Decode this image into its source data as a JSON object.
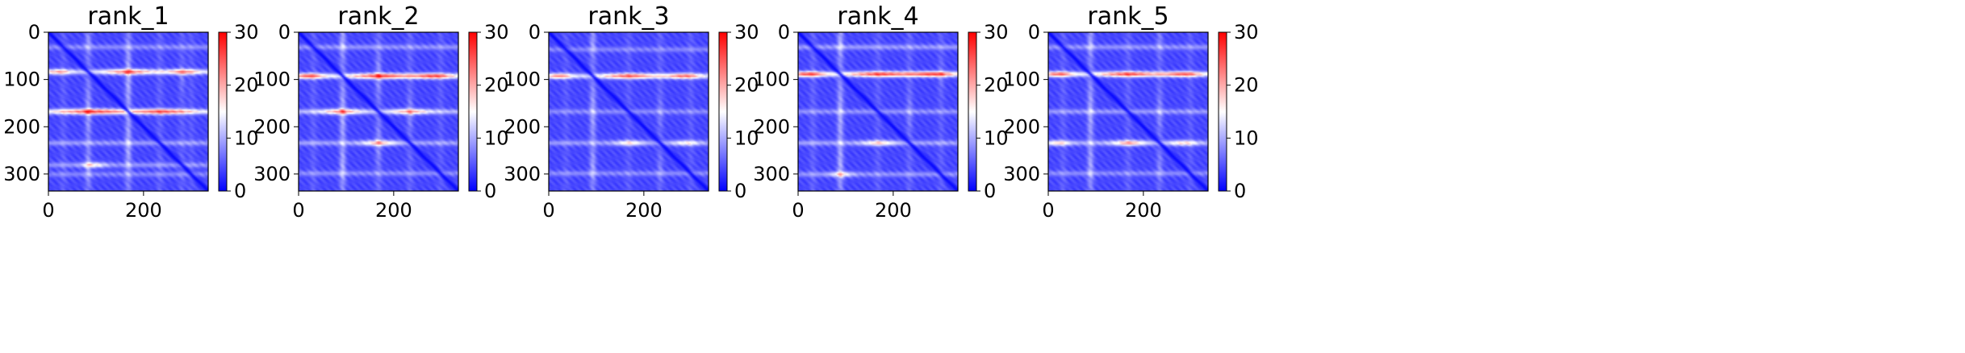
{
  "chart_data": [
    {
      "type": "heatmap",
      "title": "rank_1",
      "xlim": [
        0,
        336
      ],
      "ylim": [
        336,
        0
      ],
      "xticks": [
        0,
        200
      ],
      "yticks": [
        0,
        100,
        200,
        300
      ],
      "colorbar": {
        "min": 0,
        "max": 30,
        "ticks": [
          0,
          10,
          20,
          30
        ]
      },
      "colormap": "bwr",
      "bands": [
        {
          "row": 30,
          "strength": 0.45
        },
        {
          "row": 83,
          "strength": 0.85
        },
        {
          "row": 168,
          "strength": 1.0
        },
        {
          "row": 235,
          "strength": 0.55
        },
        {
          "row": 282,
          "strength": 0.5
        },
        {
          "row": 302,
          "strength": 0.4
        }
      ],
      "lobes": [
        {
          "x": 95,
          "y": 168,
          "width": 70,
          "strength": 1.0
        },
        {
          "x": 240,
          "y": 168,
          "width": 60,
          "strength": 0.95
        },
        {
          "x": 170,
          "y": 83,
          "width": 50,
          "strength": 0.9
        },
        {
          "x": 20,
          "y": 83,
          "width": 25,
          "strength": 0.7
        },
        {
          "x": 285,
          "y": 83,
          "width": 35,
          "strength": 0.8
        },
        {
          "x": 95,
          "y": 282,
          "width": 25,
          "strength": 0.6
        }
      ]
    },
    {
      "type": "heatmap",
      "title": "rank_2",
      "xlim": [
        0,
        336
      ],
      "ylim": [
        336,
        0
      ],
      "xticks": [
        0,
        200
      ],
      "yticks": [
        0,
        100,
        200,
        300
      ],
      "colorbar": {
        "min": 0,
        "max": 30,
        "ticks": [
          0,
          10,
          20,
          30
        ]
      },
      "colormap": "bwr",
      "bands": [
        {
          "row": 30,
          "strength": 0.5
        },
        {
          "row": 92,
          "strength": 1.0
        },
        {
          "row": 168,
          "strength": 0.75
        },
        {
          "row": 235,
          "strength": 0.6
        },
        {
          "row": 300,
          "strength": 0.45
        }
      ],
      "lobes": [
        {
          "x": 20,
          "y": 92,
          "width": 30,
          "strength": 0.95
        },
        {
          "x": 175,
          "y": 92,
          "width": 60,
          "strength": 1.0
        },
        {
          "x": 285,
          "y": 92,
          "width": 40,
          "strength": 1.0
        },
        {
          "x": 90,
          "y": 168,
          "width": 40,
          "strength": 0.85
        },
        {
          "x": 235,
          "y": 168,
          "width": 40,
          "strength": 0.75
        },
        {
          "x": 170,
          "y": 235,
          "width": 35,
          "strength": 0.75
        }
      ]
    },
    {
      "type": "heatmap",
      "title": "rank_3",
      "xlim": [
        0,
        336
      ],
      "ylim": [
        336,
        0
      ],
      "xticks": [
        0,
        200
      ],
      "yticks": [
        0,
        100,
        200,
        300
      ],
      "colorbar": {
        "min": 0,
        "max": 30,
        "ticks": [
          0,
          10,
          20,
          30
        ]
      },
      "colormap": "bwr",
      "bands": [
        {
          "row": 35,
          "strength": 0.4
        },
        {
          "row": 92,
          "strength": 0.9
        },
        {
          "row": 168,
          "strength": 0.45
        },
        {
          "row": 235,
          "strength": 0.55
        },
        {
          "row": 300,
          "strength": 0.45
        }
      ],
      "lobes": [
        {
          "x": 20,
          "y": 92,
          "width": 25,
          "strength": 0.8
        },
        {
          "x": 170,
          "y": 92,
          "width": 55,
          "strength": 0.95
        },
        {
          "x": 285,
          "y": 92,
          "width": 35,
          "strength": 0.9
        },
        {
          "x": 170,
          "y": 235,
          "width": 30,
          "strength": 0.6
        },
        {
          "x": 290,
          "y": 235,
          "width": 30,
          "strength": 0.55
        }
      ]
    },
    {
      "type": "heatmap",
      "title": "rank_4",
      "xlim": [
        0,
        336
      ],
      "ylim": [
        336,
        0
      ],
      "xticks": [
        0,
        200
      ],
      "yticks": [
        0,
        100,
        200,
        300
      ],
      "colorbar": {
        "min": 0,
        "max": 30,
        "ticks": [
          0,
          10,
          20,
          30
        ]
      },
      "colormap": "bwr",
      "bands": [
        {
          "row": 30,
          "strength": 0.55
        },
        {
          "row": 88,
          "strength": 1.0
        },
        {
          "row": 168,
          "strength": 0.5
        },
        {
          "row": 235,
          "strength": 0.6
        },
        {
          "row": 302,
          "strength": 0.5
        }
      ],
      "lobes": [
        {
          "x": 20,
          "y": 88,
          "width": 35,
          "strength": 1.0
        },
        {
          "x": 175,
          "y": 88,
          "width": 65,
          "strength": 1.0
        },
        {
          "x": 285,
          "y": 88,
          "width": 45,
          "strength": 1.0
        },
        {
          "x": 170,
          "y": 235,
          "width": 35,
          "strength": 0.65
        },
        {
          "x": 90,
          "y": 302,
          "width": 25,
          "strength": 0.55
        }
      ]
    },
    {
      "type": "heatmap",
      "title": "rank_5",
      "xlim": [
        0,
        336
      ],
      "ylim": [
        336,
        0
      ],
      "xticks": [
        0,
        200
      ],
      "yticks": [
        0,
        100,
        200,
        300
      ],
      "colorbar": {
        "min": 0,
        "max": 30,
        "ticks": [
          0,
          10,
          20,
          30
        ]
      },
      "colormap": "bwr",
      "bands": [
        {
          "row": 30,
          "strength": 0.5
        },
        {
          "row": 88,
          "strength": 0.95
        },
        {
          "row": 168,
          "strength": 0.55
        },
        {
          "row": 235,
          "strength": 0.65
        },
        {
          "row": 300,
          "strength": 0.45
        }
      ],
      "lobes": [
        {
          "x": 20,
          "y": 88,
          "width": 30,
          "strength": 0.9
        },
        {
          "x": 170,
          "y": 88,
          "width": 60,
          "strength": 1.0
        },
        {
          "x": 285,
          "y": 88,
          "width": 40,
          "strength": 0.95
        },
        {
          "x": 170,
          "y": 235,
          "width": 35,
          "strength": 0.8
        },
        {
          "x": 20,
          "y": 235,
          "width": 25,
          "strength": 0.6
        },
        {
          "x": 285,
          "y": 235,
          "width": 30,
          "strength": 0.6
        }
      ]
    }
  ]
}
